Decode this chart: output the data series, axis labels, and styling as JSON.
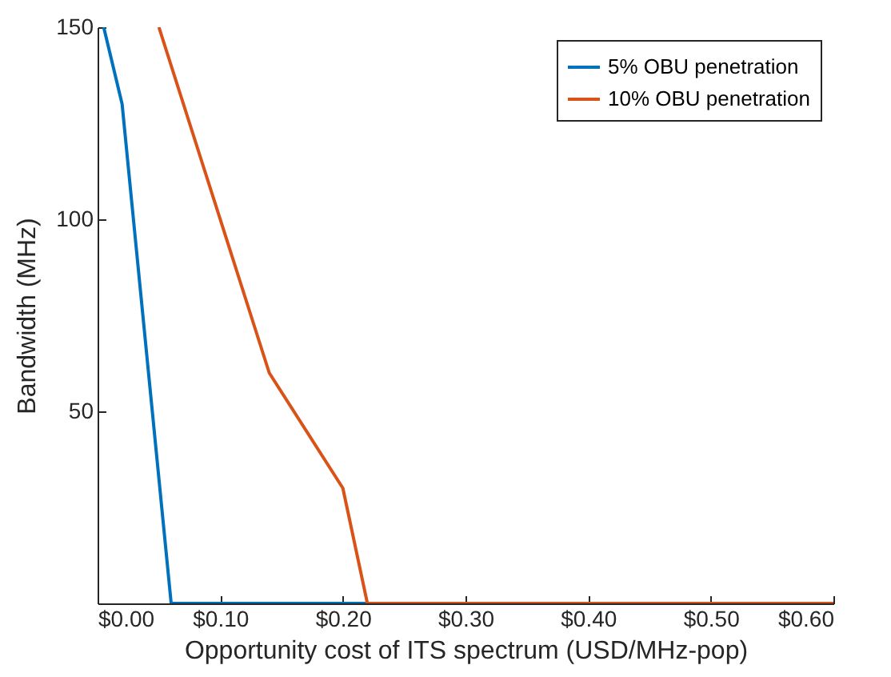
{
  "chart_data": {
    "type": "line",
    "xlabel": "Opportunity cost of ITS spectrum (USD/MHz-pop)",
    "ylabel": "Bandwidth (MHz)",
    "xlim": [
      0,
      0.6
    ],
    "ylim": [
      0,
      150
    ],
    "xticks": [
      {
        "value": 0,
        "label": "$0.00"
      },
      {
        "value": 0.1,
        "label": "$0.10"
      },
      {
        "value": 0.2,
        "label": "$0.20"
      },
      {
        "value": 0.3,
        "label": "$0.30"
      },
      {
        "value": 0.4,
        "label": "$0.40"
      },
      {
        "value": 0.5,
        "label": "$0.50"
      },
      {
        "value": 0.6,
        "label": "$0.60"
      }
    ],
    "yticks": [
      50,
      100,
      150
    ],
    "legend": "top right",
    "grid": false,
    "marker": "none",
    "line_style": "solid",
    "series": [
      {
        "name": "5% OBU penetration",
        "color": "#0072bd",
        "x": [
          0.005,
          0.02,
          0.06,
          0.6
        ],
        "values": [
          150,
          130,
          0,
          0
        ]
      },
      {
        "name": "10% OBU penetration",
        "color": "#d95319",
        "x": [
          0.05,
          0.14,
          0.2,
          0.22,
          0.6
        ],
        "values": [
          150,
          60,
          30,
          0,
          0
        ]
      }
    ]
  }
}
